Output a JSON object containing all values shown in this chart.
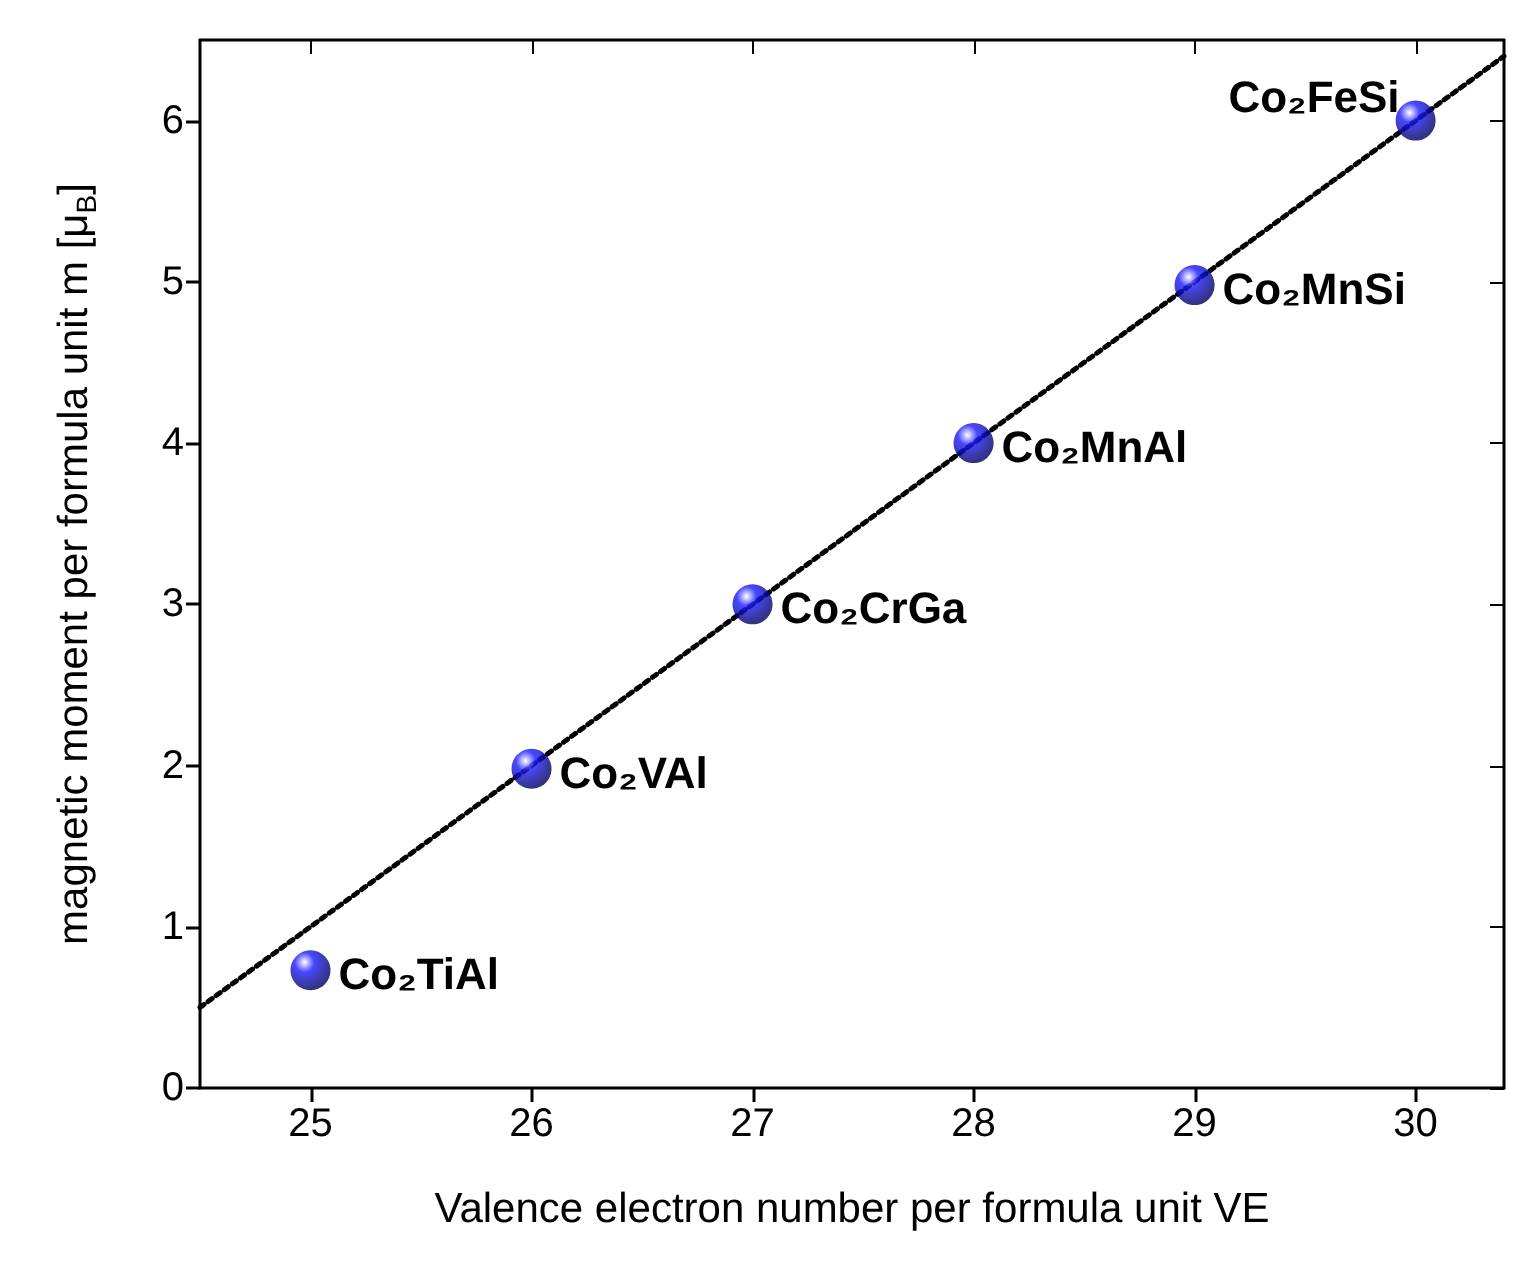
{
  "chart_data": {
    "type": "scatter",
    "xlabel": "Valence electron number per formula unit VE",
    "ylabel": "magnetic moment per formula unit m [μ$_{B}$]",
    "x": [
      25,
      26,
      27,
      28,
      29,
      30
    ],
    "series": [
      {
        "color": "#1a1aff",
        "values": [
          0.73,
          1.98,
          3.0,
          4.0,
          4.98,
          6.0
        ],
        "marker": "circle"
      },
      {
        "type": "line",
        "color": "#000000",
        "x": [
          24.5,
          30.4
        ],
        "values": [
          0.5,
          6.4
        ],
        "marker": "none",
        "line_style": "dotted"
      }
    ],
    "xlim": [
      24.5,
      30.4
    ],
    "ylim": [
      0,
      6.5
    ],
    "xticks": [
      25,
      26,
      27,
      28,
      29,
      30
    ],
    "yticks": [
      0,
      1,
      2,
      3,
      4,
      5,
      6
    ],
    "grid": false,
    "annotations": [
      {
        "text": "Co₂TiAl",
        "x": 25,
        "y": 0.73
      },
      {
        "text": "Co₂VAl",
        "x": 26,
        "y": 1.98
      },
      {
        "text": "Co₂CrGa",
        "x": 27,
        "y": 3.0
      },
      {
        "text": "Co₂MnAl",
        "x": 28,
        "y": 4.0
      },
      {
        "text": "Co₂MnSi",
        "x": 29,
        "y": 4.98
      },
      {
        "text": "Co₂FeSi",
        "x": 30,
        "y": 6.0
      }
    ]
  }
}
